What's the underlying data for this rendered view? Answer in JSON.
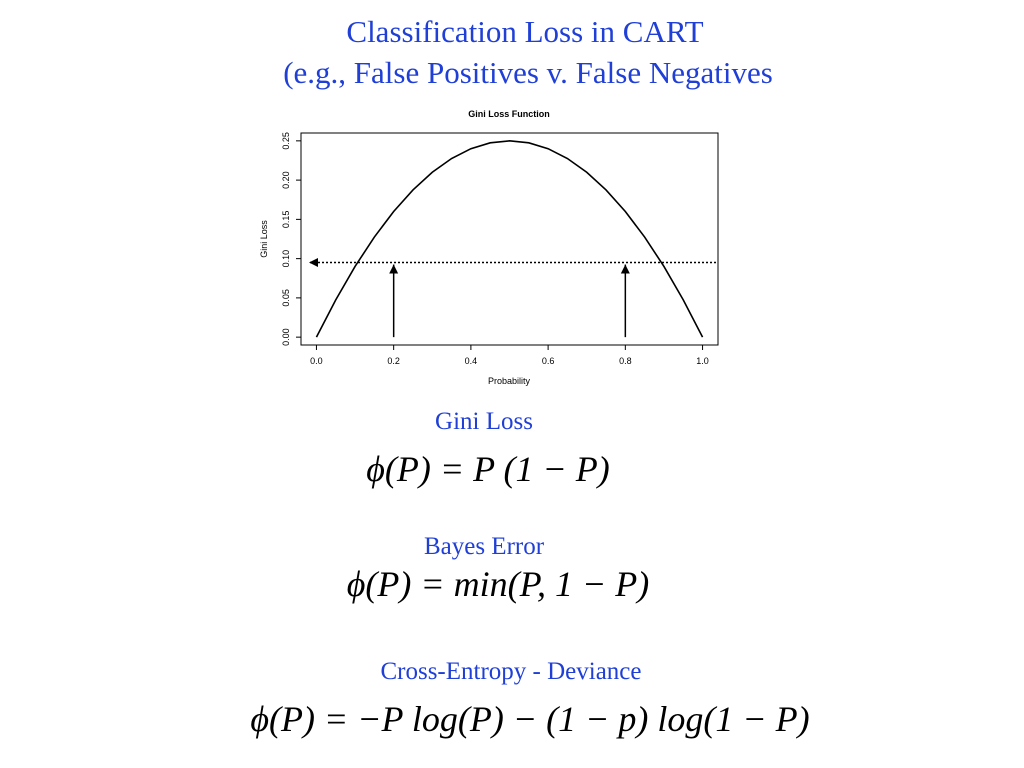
{
  "slide": {
    "title": [
      "Classification Loss in CART",
      "(e.g., False Positives v. False Negatives"
    ],
    "sections": [
      {
        "heading": "Gini Loss",
        "formula": "ϕ(P) = P  (1 − P)"
      },
      {
        "heading": "Bayes Error",
        "formula": "ϕ(P) = min(P, 1 − P)"
      },
      {
        "heading": "Cross-Entropy - Deviance",
        "formula": "ϕ(P) = −P  log(P) − (1 − p)  log(1 − P)"
      }
    ]
  },
  "chart_data": {
    "type": "line",
    "title": "Gini Loss Function",
    "x_label": "Probability",
    "y_label": "Gini Loss",
    "x": [
      0,
      0.05,
      0.1,
      0.15,
      0.2,
      0.25,
      0.3,
      0.35,
      0.4,
      0.45,
      0.5,
      0.55,
      0.6,
      0.65,
      0.7,
      0.75,
      0.8,
      0.85,
      0.9,
      0.95,
      1
    ],
    "values": [
      0,
      0.0475,
      0.09,
      0.1275,
      0.16,
      0.1875,
      0.21,
      0.2275,
      0.24,
      0.2475,
      0.25,
      0.2475,
      0.24,
      0.2275,
      0.21,
      0.1875,
      0.16,
      0.1275,
      0.09,
      0.0475,
      0
    ],
    "color": "#000000",
    "xlim": [
      -0.04,
      1.04
    ],
    "ylim": [
      -0.01,
      0.26
    ],
    "xticks": [
      {
        "value": 0,
        "label": "0.0"
      },
      0.2,
      0.4,
      0.6,
      0.8,
      {
        "value": 1,
        "label": "1.0"
      }
    ],
    "yticks": [
      {
        "value": 0,
        "label": "0.00"
      },
      {
        "value": 0.05,
        "label": "0.05"
      },
      {
        "value": 0.1,
        "label": "0.10"
      },
      {
        "value": 0.15,
        "label": "0.15"
      },
      {
        "value": 0.2,
        "label": "0.20"
      },
      {
        "value": 0.25,
        "label": "0.25"
      }
    ],
    "hline_y": 0.095,
    "arrows_x": [
      0.2,
      0.8
    ]
  }
}
